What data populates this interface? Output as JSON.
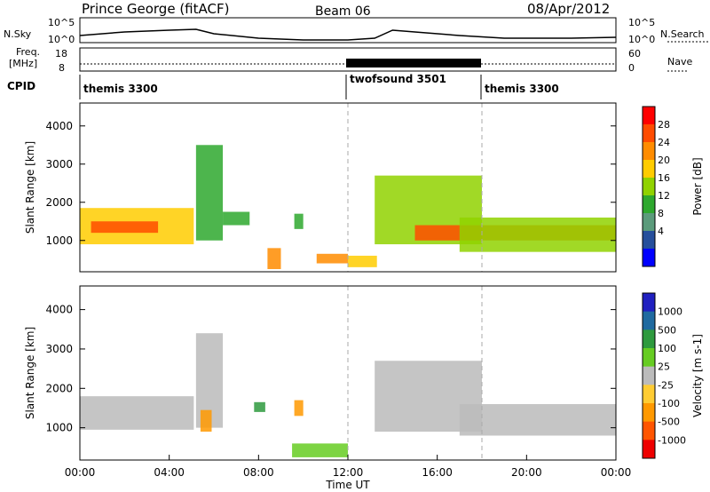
{
  "header": {
    "station": "Prince George (fitACF)",
    "beam": "Beam 06",
    "date": "08/Apr/2012"
  },
  "top_panels": {
    "nsky": {
      "label": "N.Sky",
      "left_ticks": [
        "10^5",
        "10^0"
      ],
      "right_label": "N.Search",
      "right_ticks": [
        "10^5",
        "10^0"
      ]
    },
    "freq": {
      "label_line1": "Freq.",
      "label_line2": "[MHz]",
      "left_ticks": [
        "18",
        "8"
      ],
      "right_label": "Nave",
      "right_ticks": [
        "60",
        "0"
      ]
    },
    "cpid": {
      "label": "CPID",
      "segments": [
        {
          "name": "themis 3300",
          "start_hour": 0,
          "end_hour": 12
        },
        {
          "name": "twofsound 3501",
          "start_hour": 12,
          "end_hour": 18
        },
        {
          "name": "themis 3300",
          "start_hour": 18,
          "end_hour": 24
        }
      ]
    }
  },
  "power_legend": {
    "title": "Power [dB]",
    "ticks": [
      "28",
      "24",
      "20",
      "16",
      "12",
      "8",
      "4"
    ],
    "colors": [
      "#ff0000",
      "#ff4c00",
      "#ff8c00",
      "#ffcc00",
      "#90d200",
      "#2ea82e",
      "#5b9b7b",
      "#264f9c",
      "#0000ff"
    ]
  },
  "velocity_legend": {
    "title": "Velocity [m s-1]",
    "ticks": [
      "1000",
      "500",
      "100",
      "25",
      "-25",
      "-100",
      "-500",
      "-1000"
    ],
    "colors": [
      "#2020c0",
      "#1f6aa0",
      "#2e9a3e",
      "#66cc22",
      "#bbbbbb",
      "#ffcc33",
      "#ff9900",
      "#ff5500",
      "#ee0000"
    ]
  },
  "chart_data": {
    "type": "heatmap",
    "xlabel": "Time UT",
    "ylabel": "Slant Range [km]",
    "x_ticks": [
      "00:00",
      "04:00",
      "08:00",
      "12:00",
      "16:00",
      "20:00",
      "00:00"
    ],
    "x_range_hours": [
      0,
      24
    ],
    "y_ticks": [
      1000,
      2000,
      3000,
      4000
    ],
    "y_range_km": [
      180,
      4600
    ],
    "panels": [
      {
        "quantity": "Power [dB]",
        "regions": [
          {
            "t0": 0.0,
            "t1": 5.1,
            "r0": 900,
            "r1": 1850,
            "value": 18
          },
          {
            "t0": 0.5,
            "t1": 3.5,
            "r0": 1200,
            "r1": 1500,
            "value": 26
          },
          {
            "t0": 5.2,
            "t1": 6.4,
            "r0": 1000,
            "r1": 3500,
            "value": 8
          },
          {
            "t0": 6.4,
            "t1": 7.6,
            "r0": 1400,
            "r1": 1750,
            "value": 10
          },
          {
            "t0": 8.4,
            "t1": 9.0,
            "r0": 250,
            "r1": 800,
            "value": 22
          },
          {
            "t0": 9.6,
            "t1": 10.0,
            "r0": 1300,
            "r1": 1700,
            "value": 10
          },
          {
            "t0": 10.6,
            "t1": 12.0,
            "r0": 400,
            "r1": 650,
            "value": 20
          },
          {
            "t0": 12.0,
            "t1": 13.3,
            "r0": 300,
            "r1": 600,
            "value": 18
          },
          {
            "t0": 13.2,
            "t1": 18.0,
            "r0": 900,
            "r1": 2700,
            "value": 14
          },
          {
            "t0": 15.0,
            "t1": 24.0,
            "r0": 1000,
            "r1": 1400,
            "value": 26
          },
          {
            "t0": 17.0,
            "t1": 24.0,
            "r0": 700,
            "r1": 1600,
            "value": 12
          }
        ]
      },
      {
        "quantity": "Velocity [m s-1]",
        "regions": [
          {
            "t0": 0.0,
            "t1": 5.1,
            "r0": 950,
            "r1": 1800,
            "value": 0
          },
          {
            "t0": 5.2,
            "t1": 6.4,
            "r0": 1000,
            "r1": 3400,
            "value": 0
          },
          {
            "t0": 5.4,
            "t1": 5.9,
            "r0": 900,
            "r1": 1450,
            "value": -300
          },
          {
            "t0": 7.8,
            "t1": 8.3,
            "r0": 1400,
            "r1": 1650,
            "value": 300
          },
          {
            "t0": 9.6,
            "t1": 10.0,
            "r0": 1300,
            "r1": 1700,
            "value": -300
          },
          {
            "t0": 9.5,
            "t1": 12.0,
            "r0": 250,
            "r1": 600,
            "value": 80
          },
          {
            "t0": 13.2,
            "t1": 18.0,
            "r0": 900,
            "r1": 2700,
            "value": 0
          },
          {
            "t0": 17.0,
            "t1": 24.0,
            "r0": 800,
            "r1": 1600,
            "value": 0
          }
        ]
      }
    ]
  }
}
